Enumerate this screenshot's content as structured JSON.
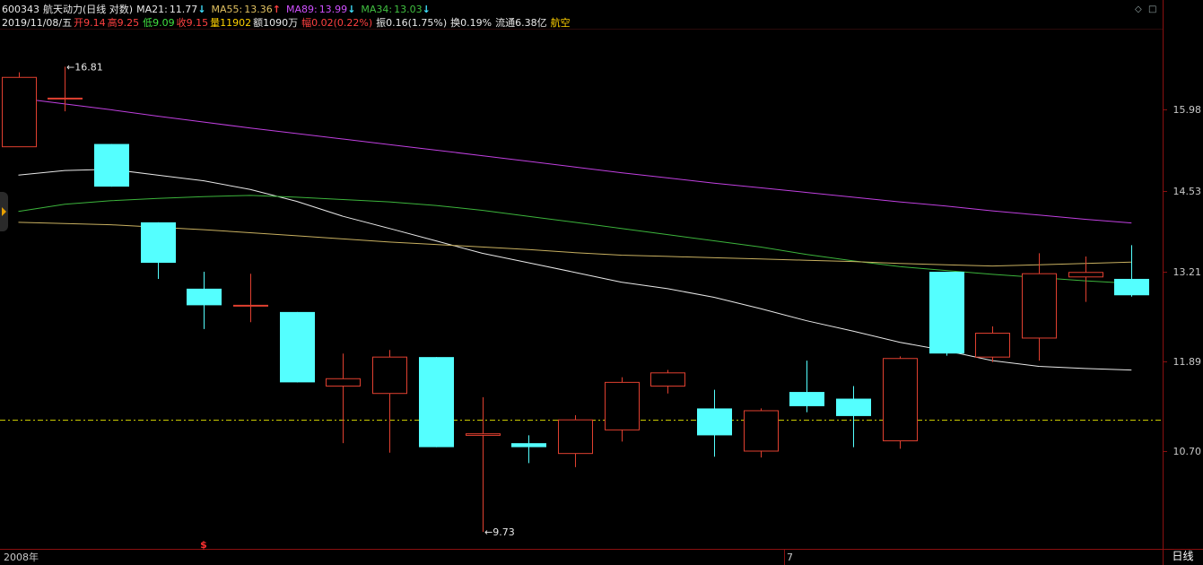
{
  "header": {
    "code": "600343",
    "name": "航天动力",
    "mode": "(日线 对数)",
    "ma": [
      {
        "label": "MA21:",
        "value": "11.77",
        "arrow": "↓",
        "color": "#e8e8e8",
        "arrow_color": "#40e0ff"
      },
      {
        "label": "MA55:",
        "value": "13.36",
        "arrow": "↑",
        "color": "#e0c060",
        "arrow_color": "#ff4040"
      },
      {
        "label": "MA89:",
        "value": "13.99",
        "arrow": "↓",
        "color": "#d050ff",
        "arrow_color": "#40e0ff"
      },
      {
        "label": "MA34:",
        "value": "13.03",
        "arrow": "↓",
        "color": "#40c040",
        "arrow_color": "#40e0ff"
      }
    ]
  },
  "quote": {
    "date": "2019/11/08/五",
    "open_label": "开",
    "open": "9.14",
    "high_label": "高",
    "high": "9.25",
    "low_label": "低",
    "low": "9.09",
    "close_label": "收",
    "close": "9.15",
    "volume_label": "量",
    "volume": "11902",
    "amount_label": "额",
    "amount": "1090万",
    "change_label": "幅",
    "change": "0.02(0.22%)",
    "amplitude_label": "振",
    "amplitude": "0.16(1.75%)",
    "turnover_label": "换",
    "turnover": "0.19%",
    "float_label": "流通",
    "float_cap": "6.38亿",
    "sector": "航空"
  },
  "window_controls": {
    "restore": "◇",
    "maximize": "□"
  },
  "period_button": "日线",
  "colors": {
    "background": "#000000",
    "up": "#e04030",
    "down": "#54ffff",
    "ma21": "#e8e8e8",
    "ma34": "#3cb43c",
    "ma55": "#c8b060",
    "ma89": "#c040e0",
    "grid": "#8a1010",
    "price_axis_text": "#c8c8c8",
    "ref_line": "#c8c800"
  },
  "chart_data": {
    "type": "candlestick",
    "scale": "log",
    "y_ticks": [
      15.98,
      14.53,
      13.21,
      11.89,
      10.7
    ],
    "ylim": [
      9.6,
      17.0
    ],
    "reference_line": 11.1,
    "x_labels": [
      {
        "index": 0,
        "text": "2008年"
      },
      {
        "index": 17,
        "text": "7"
      }
    ],
    "max_annotation": {
      "index": 1,
      "text": "16.81"
    },
    "min_annotation": {
      "index": 10,
      "text": "9.73"
    },
    "marker": {
      "index": 4,
      "text": "$",
      "color": "#ff3030"
    },
    "candles": [
      {
        "open": 15.3,
        "high": 16.7,
        "low": 15.3,
        "close": 16.6
      },
      {
        "open": 16.2,
        "high": 16.81,
        "low": 15.95,
        "close": 16.2
      },
      {
        "open": 15.35,
        "high": 15.35,
        "low": 14.6,
        "close": 14.6
      },
      {
        "open": 14.0,
        "high": 14.0,
        "low": 13.1,
        "close": 13.35
      },
      {
        "open": 12.95,
        "high": 13.21,
        "low": 12.35,
        "close": 12.7
      },
      {
        "open": 12.7,
        "high": 13.18,
        "low": 12.45,
        "close": 12.7
      },
      {
        "open": 12.6,
        "high": 12.6,
        "low": 11.6,
        "close": 11.6
      },
      {
        "open": 11.55,
        "high": 12.0,
        "low": 10.8,
        "close": 11.65
      },
      {
        "open": 11.45,
        "high": 12.05,
        "low": 10.68,
        "close": 11.95
      },
      {
        "open": 11.95,
        "high": 11.95,
        "low": 10.75,
        "close": 10.75
      },
      {
        "open": 10.9,
        "high": 11.4,
        "low": 9.73,
        "close": 10.92
      },
      {
        "open": 10.8,
        "high": 10.9,
        "low": 10.55,
        "close": 10.75
      },
      {
        "open": 10.67,
        "high": 11.16,
        "low": 10.5,
        "close": 11.1
      },
      {
        "open": 10.97,
        "high": 11.67,
        "low": 10.82,
        "close": 11.6
      },
      {
        "open": 11.55,
        "high": 11.77,
        "low": 11.45,
        "close": 11.73
      },
      {
        "open": 11.25,
        "high": 11.5,
        "low": 10.63,
        "close": 10.9
      },
      {
        "open": 10.7,
        "high": 11.25,
        "low": 10.62,
        "close": 11.22
      },
      {
        "open": 11.47,
        "high": 11.9,
        "low": 11.2,
        "close": 11.28
      },
      {
        "open": 11.38,
        "high": 11.55,
        "low": 10.75,
        "close": 11.15
      },
      {
        "open": 10.83,
        "high": 11.96,
        "low": 10.73,
        "close": 11.93
      },
      {
        "open": 13.21,
        "high": 13.21,
        "low": 11.97,
        "close": 12.0
      },
      {
        "open": 11.95,
        "high": 12.39,
        "low": 11.88,
        "close": 12.29
      },
      {
        "open": 12.22,
        "high": 13.5,
        "low": 11.9,
        "close": 13.18
      },
      {
        "open": 13.13,
        "high": 13.45,
        "low": 12.75,
        "close": 13.2
      },
      {
        "open": 13.1,
        "high": 13.63,
        "low": 12.83,
        "close": 12.85
      }
    ],
    "series": [
      {
        "name": "MA21",
        "values": [
          14.8,
          14.88,
          14.9,
          14.8,
          14.7,
          14.55,
          14.35,
          14.1,
          13.9,
          13.7,
          13.5,
          13.35,
          13.2,
          13.05,
          12.95,
          12.82,
          12.65,
          12.47,
          12.32,
          12.16,
          12.04,
          11.9,
          11.82,
          11.79,
          11.77
        ]
      },
      {
        "name": "MA34",
        "values": [
          14.18,
          14.3,
          14.36,
          14.4,
          14.43,
          14.45,
          14.42,
          14.38,
          14.34,
          14.28,
          14.2,
          14.1,
          14.0,
          13.9,
          13.8,
          13.7,
          13.6,
          13.48,
          13.38,
          13.29,
          13.23,
          13.17,
          13.12,
          13.07,
          13.03
        ]
      },
      {
        "name": "MA55",
        "values": [
          14.0,
          13.98,
          13.96,
          13.92,
          13.88,
          13.83,
          13.78,
          13.73,
          13.68,
          13.64,
          13.6,
          13.56,
          13.51,
          13.47,
          13.45,
          13.43,
          13.41,
          13.39,
          13.37,
          13.34,
          13.32,
          13.3,
          13.32,
          13.34,
          13.36
        ]
      },
      {
        "name": "MA89",
        "values": [
          16.2,
          16.09,
          15.98,
          15.86,
          15.75,
          15.64,
          15.54,
          15.44,
          15.34,
          15.24,
          15.14,
          15.04,
          14.94,
          14.84,
          14.75,
          14.66,
          14.58,
          14.5,
          14.42,
          14.34,
          14.27,
          14.19,
          14.12,
          14.05,
          13.99
        ]
      }
    ]
  }
}
